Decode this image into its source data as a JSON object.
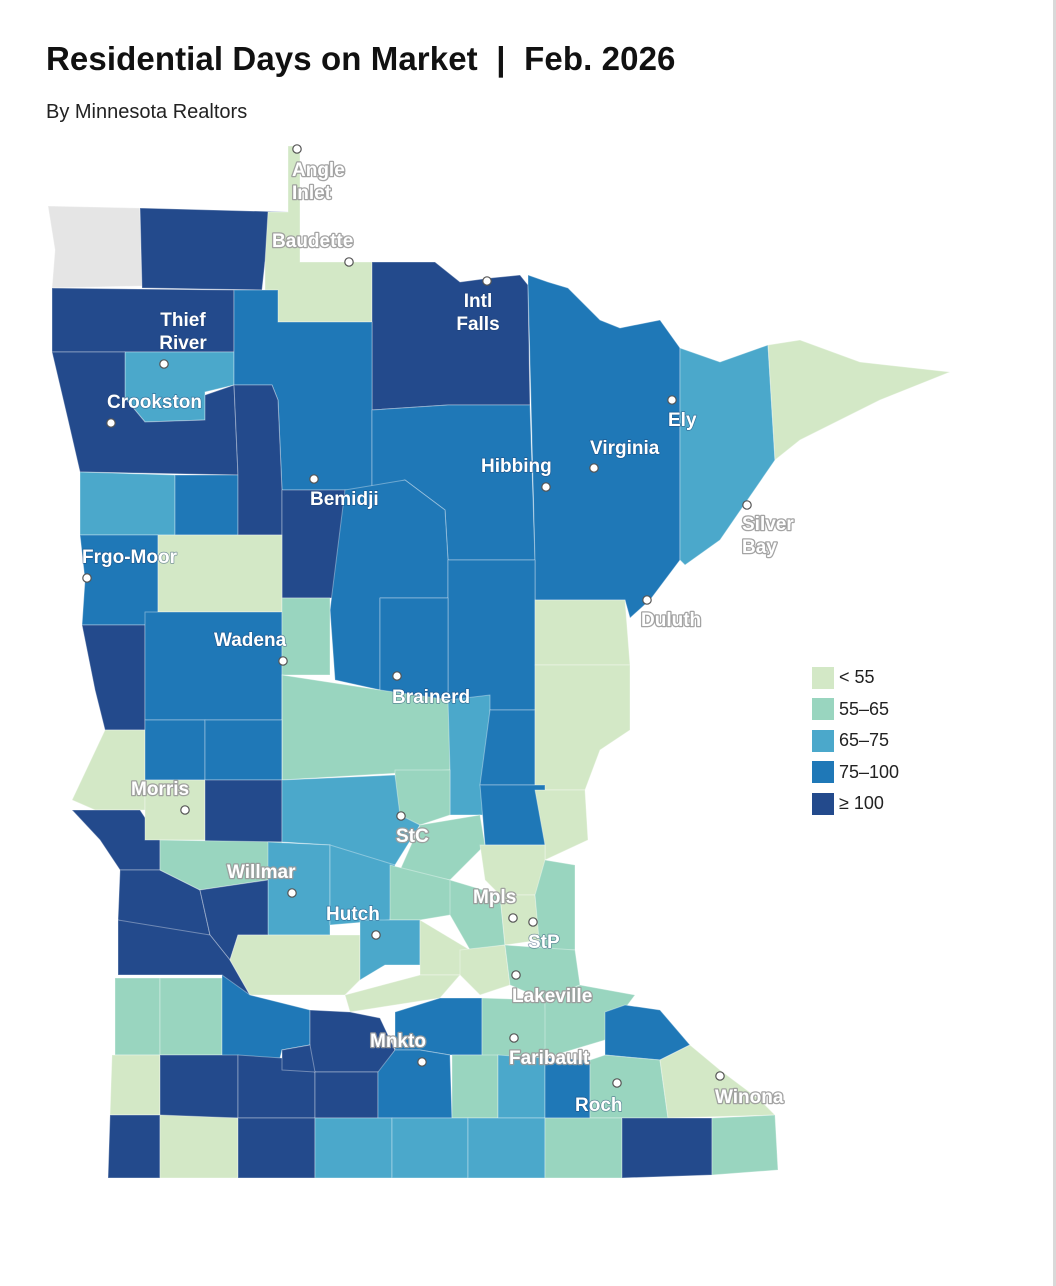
{
  "header": {
    "title": "Residential Days on Market  |  Feb. 2026",
    "subtitle": "By Minnesota Realtors"
  },
  "legend": [
    {
      "label": "< 55",
      "color": "#d3e8c6"
    },
    {
      "label": "55–65",
      "color": "#99d5bf"
    },
    {
      "label": "65–75",
      "color": "#4ba8cb"
    },
    {
      "label": "75–100",
      "color": "#1f78b7"
    },
    {
      "label": "≥ 100",
      "color": "#234a8c"
    }
  ],
  "no_data_color": "#e5e5e5",
  "cities": [
    {
      "name": "Angle Inlet",
      "lines": [
        "Angle",
        "Inlet"
      ]
    },
    {
      "name": "Baudette",
      "lines": [
        "Baudette"
      ]
    },
    {
      "name": "Intl Falls",
      "lines": [
        "Intl",
        "Falls"
      ]
    },
    {
      "name": "Thief River",
      "lines": [
        "Thief",
        "River"
      ]
    },
    {
      "name": "Crookston",
      "lines": [
        "Crookston"
      ]
    },
    {
      "name": "Ely",
      "lines": [
        "Ely"
      ]
    },
    {
      "name": "Virginia",
      "lines": [
        "Virginia"
      ]
    },
    {
      "name": "Hibbing",
      "lines": [
        "Hibbing"
      ]
    },
    {
      "name": "Bemidji",
      "lines": [
        "Bemidji"
      ]
    },
    {
      "name": "Silver Bay",
      "lines": [
        "Silver",
        "Bay"
      ]
    },
    {
      "name": "Frgo-Moor",
      "lines": [
        "Frgo-Moor"
      ]
    },
    {
      "name": "Duluth",
      "lines": [
        "Duluth"
      ]
    },
    {
      "name": "Wadena",
      "lines": [
        "Wadena"
      ]
    },
    {
      "name": "Brainerd",
      "lines": [
        "Brainerd"
      ]
    },
    {
      "name": "Morris",
      "lines": [
        "Morris"
      ]
    },
    {
      "name": "StC",
      "lines": [
        "StC"
      ]
    },
    {
      "name": "Willmar",
      "lines": [
        "Willmar"
      ]
    },
    {
      "name": "Mpls",
      "lines": [
        "Mpls"
      ]
    },
    {
      "name": "Hutch",
      "lines": [
        "Hutch"
      ]
    },
    {
      "name": "StP",
      "lines": [
        "StP"
      ]
    },
    {
      "name": "Lakeville",
      "lines": [
        "Lakeville"
      ]
    },
    {
      "name": "Mnkto",
      "lines": [
        "Mnkto"
      ]
    },
    {
      "name": "Faribault",
      "lines": [
        "Faribault"
      ]
    },
    {
      "name": "Winona",
      "lines": [
        "Winona"
      ]
    },
    {
      "name": "Roch",
      "lines": [
        "Roch"
      ]
    }
  ],
  "regions": [
    {
      "name": "Kittson",
      "bin": "none"
    },
    {
      "name": "Roseau",
      "bin": "≥ 100"
    },
    {
      "name": "Lake of the Woods",
      "bin": "< 55"
    },
    {
      "name": "Marshall",
      "bin": "≥ 100"
    },
    {
      "name": "Koochiching",
      "bin": "≥ 100"
    },
    {
      "name": "Pennington",
      "bin": "65–75"
    },
    {
      "name": "Polk",
      "bin": "≥ 100"
    },
    {
      "name": "Beltrami",
      "bin": "75–100"
    },
    {
      "name": "Itasca",
      "bin": "75–100"
    },
    {
      "name": "St. Louis",
      "bin": "75–100"
    },
    {
      "name": "Lake",
      "bin": "65–75"
    },
    {
      "name": "Cook",
      "bin": "< 55"
    },
    {
      "name": "Norman",
      "bin": "65–75"
    },
    {
      "name": "Mahnomen",
      "bin": "75–100"
    },
    {
      "name": "Clearwater",
      "bin": "≥ 100"
    },
    {
      "name": "Hubbard",
      "bin": "≥ 100"
    },
    {
      "name": "Clay",
      "bin": "75–100"
    },
    {
      "name": "Becker",
      "bin": "< 55"
    },
    {
      "name": "Cass",
      "bin": "75–100"
    },
    {
      "name": "Aitkin",
      "bin": "75–100"
    },
    {
      "name": "Carlton",
      "bin": "< 55"
    },
    {
      "name": "Wilkin",
      "bin": "≥ 100"
    },
    {
      "name": "Otter Tail",
      "bin": "75–100"
    },
    {
      "name": "Wadena",
      "bin": "55–65"
    },
    {
      "name": "Crow Wing",
      "bin": "75–100"
    },
    {
      "name": "Morrison",
      "bin": "55–65"
    },
    {
      "name": "Mille Lacs",
      "bin": "65–75"
    },
    {
      "name": "Kanabec",
      "bin": "75–100"
    },
    {
      "name": "Pine",
      "bin": "< 55"
    },
    {
      "name": "Traverse",
      "bin": "< 55"
    },
    {
      "name": "Grant",
      "bin": "75–100"
    },
    {
      "name": "Douglas",
      "bin": "75–100"
    },
    {
      "name": "Todd",
      "bin": "55–65"
    },
    {
      "name": "Benton",
      "bin": "55–65"
    },
    {
      "name": "Isanti",
      "bin": "75–100"
    },
    {
      "name": "Chisago",
      "bin": "< 55"
    },
    {
      "name": "Big Stone",
      "bin": "≥ 100"
    },
    {
      "name": "Stevens",
      "bin": "< 55"
    },
    {
      "name": "Pope",
      "bin": "≥ 100"
    },
    {
      "name": "Stearns",
      "bin": "65–75"
    },
    {
      "name": "Sherburne",
      "bin": "55–65"
    },
    {
      "name": "Anoka",
      "bin": "< 55"
    },
    {
      "name": "Lac qui Parle",
      "bin": "≥ 100"
    },
    {
      "name": "Swift",
      "bin": "55–65"
    },
    {
      "name": "Kandiyohi",
      "bin": "65–75"
    },
    {
      "name": "Meeker",
      "bin": "65–75"
    },
    {
      "name": "Wright",
      "bin": "55–65"
    },
    {
      "name": "Hennepin",
      "bin": "55–65"
    },
    {
      "name": "Ramsey",
      "bin": "< 55"
    },
    {
      "name": "Washington",
      "bin": "55–65"
    },
    {
      "name": "Chippewa",
      "bin": "≥ 100"
    },
    {
      "name": "Yellow Medicine",
      "bin": "≥ 100"
    },
    {
      "name": "Renville",
      "bin": "< 55"
    },
    {
      "name": "McLeod",
      "bin": "65–75"
    },
    {
      "name": "Carver",
      "bin": "< 55"
    },
    {
      "name": "Scott",
      "bin": "< 55"
    },
    {
      "name": "Dakota",
      "bin": "55–65"
    },
    {
      "name": "Lincoln",
      "bin": "55–65"
    },
    {
      "name": "Lyon",
      "bin": "55–65"
    },
    {
      "name": "Redwood",
      "bin": "75–100"
    },
    {
      "name": "Sibley",
      "bin": "< 55"
    },
    {
      "name": "Nicollet",
      "bin": "≥ 100"
    },
    {
      "name": "Le Sueur",
      "bin": "75–100"
    },
    {
      "name": "Rice",
      "bin": "55–65"
    },
    {
      "name": "Goodhue",
      "bin": "55–65"
    },
    {
      "name": "Wabasha",
      "bin": "75–100"
    },
    {
      "name": "Pipestone",
      "bin": "< 55"
    },
    {
      "name": "Murray",
      "bin": "≥ 100"
    },
    {
      "name": "Cottonwood",
      "bin": "≥ 100"
    },
    {
      "name": "Watonwan",
      "bin": "≥ 100"
    },
    {
      "name": "Blue Earth",
      "bin": "75–100"
    },
    {
      "name": "Waseca",
      "bin": "55–65"
    },
    {
      "name": "Steele",
      "bin": "65–75"
    },
    {
      "name": "Dodge",
      "bin": "75–100"
    },
    {
      "name": "Olmsted",
      "bin": "55–65"
    },
    {
      "name": "Winona",
      "bin": "< 55"
    },
    {
      "name": "Brown",
      "bin": "≥ 100"
    },
    {
      "name": "Rock",
      "bin": "≥ 100"
    },
    {
      "name": "Nobles",
      "bin": "< 55"
    },
    {
      "name": "Jackson",
      "bin": "≥ 100"
    },
    {
      "name": "Martin",
      "bin": "65–75"
    },
    {
      "name": "Faribault",
      "bin": "65–75"
    },
    {
      "name": "Freeborn",
      "bin": "65–75"
    },
    {
      "name": "Mower",
      "bin": "55–65"
    },
    {
      "name": "Fillmore",
      "bin": "≥ 100"
    },
    {
      "name": "Houston",
      "bin": "55–65"
    }
  ]
}
